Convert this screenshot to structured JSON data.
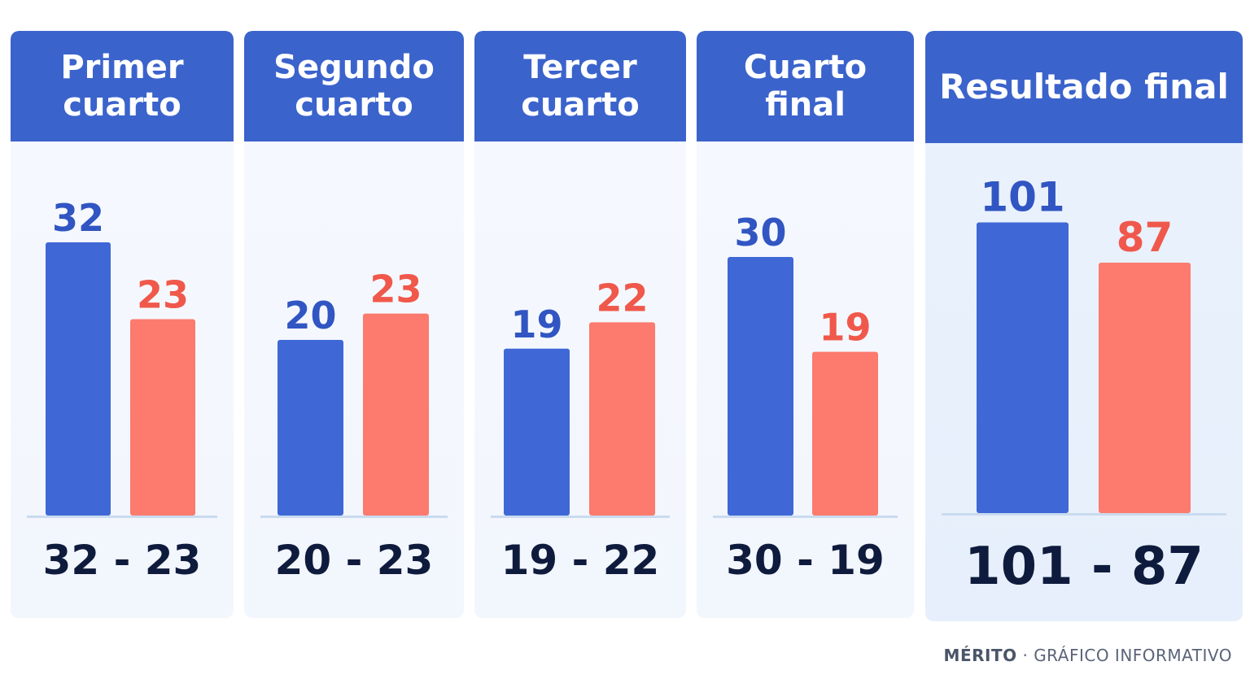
{
  "colors": {
    "team_a": "#3f68d6",
    "team_b": "#fc7a6e",
    "team_a_label": "#3155c2",
    "team_b_label": "#f0584b",
    "header_bg": "#3b63cc",
    "baseline": "#c9dbef",
    "score_text": "#0f1b3d"
  },
  "chart_data": {
    "type": "bar",
    "panels": [
      {
        "title": "Primer cuarto",
        "values": [
          32,
          23
        ],
        "score": "32 - 23"
      },
      {
        "title": "Segundo cuarto",
        "values": [
          20,
          23
        ],
        "score": "20 - 23"
      },
      {
        "title": "Tercer cuarto",
        "values": [
          19,
          22
        ],
        "score": "19 - 22"
      },
      {
        "title": "Cuarto final",
        "values": [
          30,
          19
        ],
        "score": "30 - 19"
      },
      {
        "title": "Resultado final",
        "values": [
          101,
          87
        ],
        "score": "101 - 87"
      }
    ]
  },
  "footer": {
    "brand": "MÉRITO",
    "separator": "·",
    "text": "GRÁFICO INFORMATIVO"
  }
}
